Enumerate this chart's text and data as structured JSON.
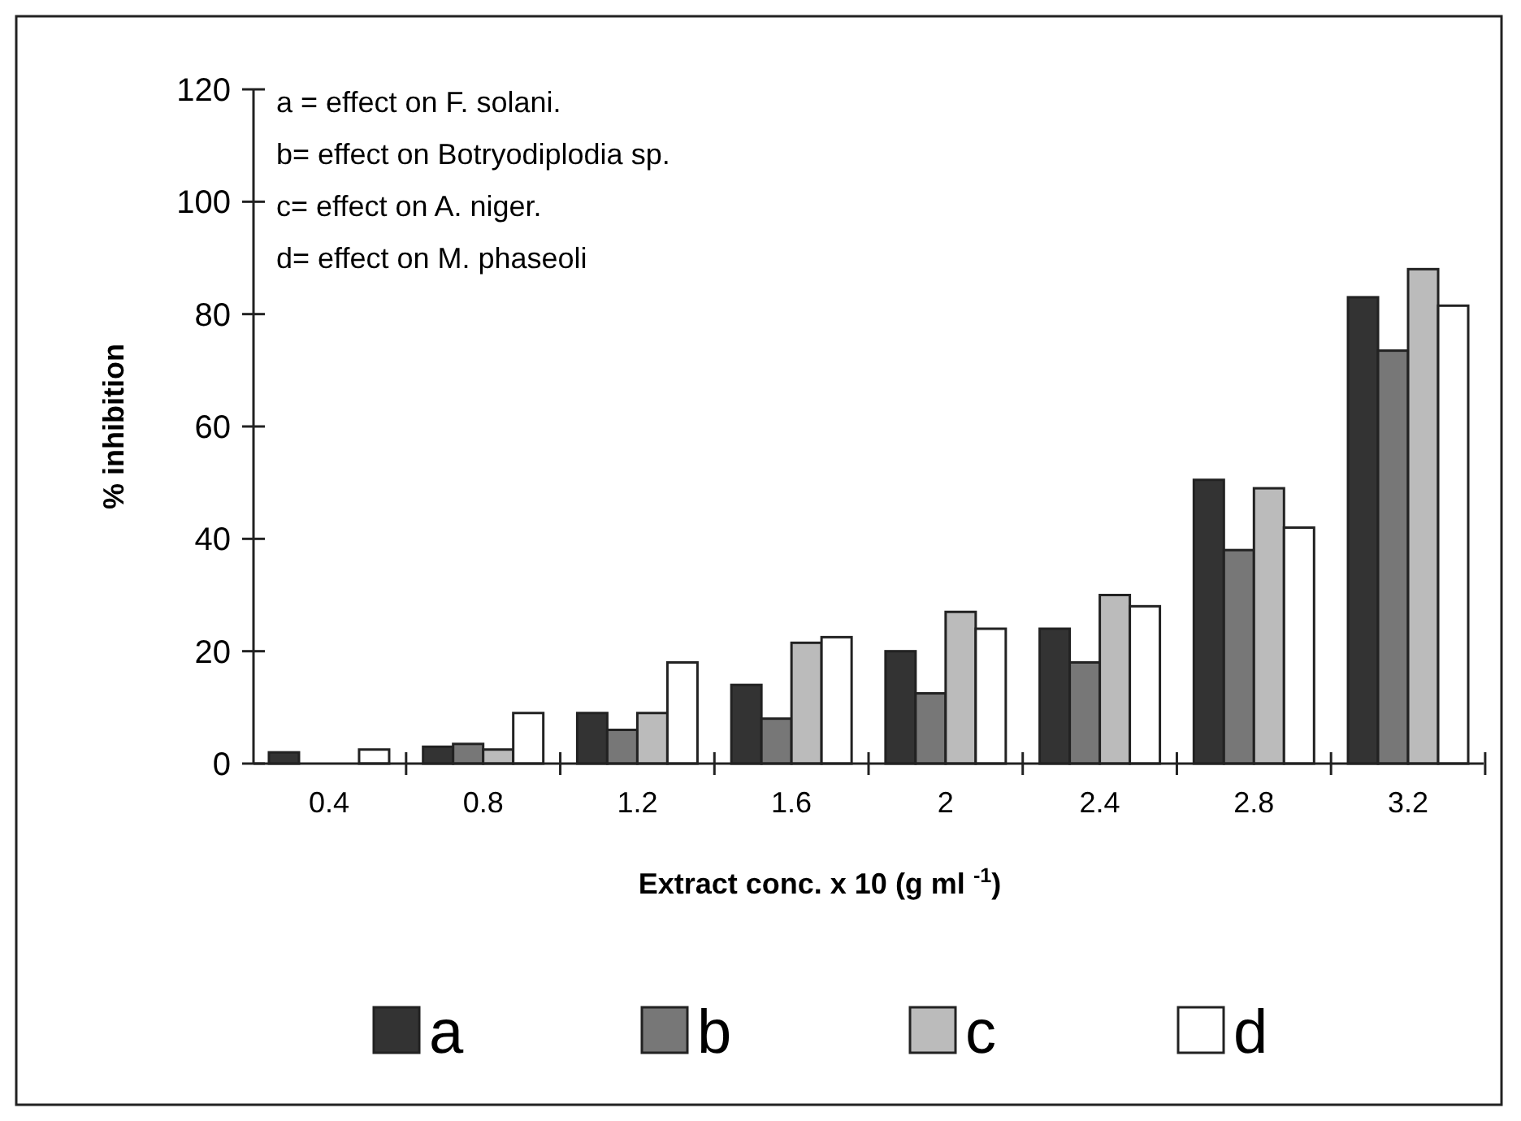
{
  "chart_data": {
    "type": "bar",
    "xlabel": "Extract conc. x 10 (g ml $^{-1}$)",
    "ylabel": "% inhibition",
    "categories": [
      "0.4",
      "0.8",
      "1.2",
      "1.6",
      "2",
      "2.4",
      "2.8",
      "3.2"
    ],
    "series": [
      {
        "name": "a",
        "color": "#333333",
        "values": [
          2,
          3,
          9,
          14,
          20,
          24,
          50.5,
          83
        ]
      },
      {
        "name": "b",
        "color": "#777777",
        "values": [
          0,
          3.5,
          6,
          8,
          12.5,
          18,
          38,
          73.5
        ]
      },
      {
        "name": "c",
        "color": "#bbbbbb",
        "values": [
          0,
          2.5,
          9,
          21.5,
          27,
          30,
          49,
          88
        ]
      },
      {
        "name": "d",
        "color": "#ffffff",
        "values": [
          2.5,
          9,
          18,
          22.5,
          24,
          28,
          42,
          81.5
        ]
      }
    ],
    "ylim": [
      0,
      120
    ],
    "yticks": [
      0,
      20,
      40,
      60,
      80,
      100,
      120
    ],
    "legend": "bottom",
    "grid": false,
    "annotations": [
      "a = effect on F. solani.",
      "b= effect on Botryodiplodia sp.",
      "c= effect on A. niger.",
      "d= effect on M. phaseoli"
    ]
  }
}
